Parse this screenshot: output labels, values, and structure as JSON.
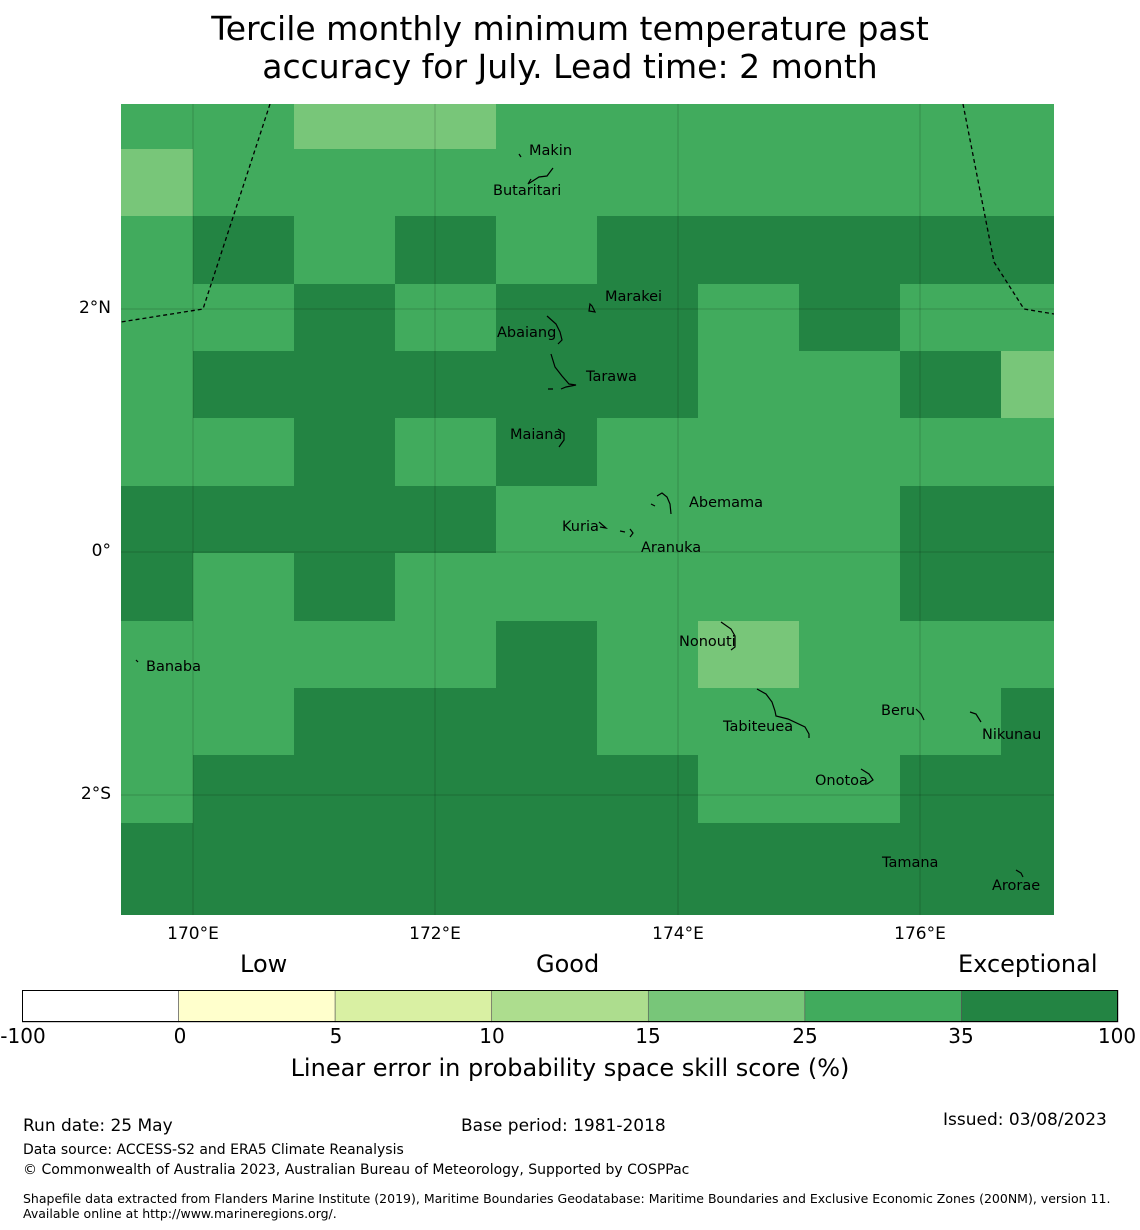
{
  "title": {
    "line1": "Tercile monthly minimum temperature past",
    "line2": "accuracy for July. Lead time: 2 month"
  },
  "map": {
    "lat_ticks": [
      "2°N",
      "0°",
      "2°S"
    ],
    "lon_ticks": [
      "170°E",
      "172°E",
      "174°E",
      "176°E"
    ],
    "grid_rows": [
      [
        2,
        2,
        1,
        1,
        2,
        2,
        2,
        2,
        2,
        2
      ],
      [
        1,
        2,
        2,
        2,
        2,
        2,
        2,
        2,
        2,
        2
      ],
      [
        2,
        3,
        2,
        3,
        2,
        3,
        3,
        3,
        3,
        3
      ],
      [
        2,
        2,
        3,
        2,
        3,
        3,
        2,
        3,
        2,
        2
      ],
      [
        2,
        3,
        3,
        3,
        3,
        3,
        2,
        2,
        3,
        1
      ],
      [
        2,
        2,
        3,
        2,
        3,
        2,
        2,
        2,
        2,
        2
      ],
      [
        3,
        3,
        3,
        3,
        2,
        2,
        2,
        2,
        3,
        3
      ],
      [
        3,
        2,
        3,
        2,
        2,
        2,
        2,
        2,
        3,
        3
      ],
      [
        2,
        2,
        2,
        2,
        3,
        2,
        1,
        2,
        2,
        2
      ],
      [
        2,
        2,
        3,
        3,
        3,
        2,
        2,
        2,
        2,
        3
      ],
      [
        2,
        3,
        3,
        3,
        3,
        3,
        2,
        2,
        3,
        3
      ],
      [
        3,
        3,
        3,
        3,
        3,
        3,
        3,
        3,
        3,
        3
      ]
    ],
    "islands": [
      {
        "name": "Makin"
      },
      {
        "name": "Butaritari"
      },
      {
        "name": "Marakei"
      },
      {
        "name": "Abaiang"
      },
      {
        "name": "Tarawa"
      },
      {
        "name": "Maiana"
      },
      {
        "name": "Abemama"
      },
      {
        "name": "Kuria"
      },
      {
        "name": "Aranuka"
      },
      {
        "name": "Banaba"
      },
      {
        "name": "Nonouti"
      },
      {
        "name": "Tabiteuea"
      },
      {
        "name": "Beru"
      },
      {
        "name": "Nikunau"
      },
      {
        "name": "Onotoa"
      },
      {
        "name": "Tamana"
      },
      {
        "name": "Arorae"
      }
    ]
  },
  "colorbar": {
    "categories": [
      "Low",
      "Good",
      "Exceptional"
    ],
    "ticks": [
      "-100",
      "0",
      "5",
      "10",
      "15",
      "25",
      "35",
      "100"
    ],
    "colors": [
      "#ffffff",
      "#ffffcc",
      "#d9f0a3",
      "#addd8e",
      "#78c679",
      "#41ab5d",
      "#238443"
    ],
    "label": "Linear error in probability space skill score (%)"
  },
  "footer": {
    "run_date": "Run date: 25 May",
    "base_period": "Base period: 1981-2018",
    "issued": "Issued: 03/08/2023",
    "data_source": "Data source: ACCESS-S2 and ERA5 Climate Reanalysis",
    "copyright": "© Commonwealth of Australia 2023, Australian Bureau of Meteorology, Supported by COSPPac",
    "shapefile": "Shapefile data extracted from Flanders Marine Institute (2019), Maritime Boundaries Geodatabase: Maritime Boundaries and Exclusive Economic Zones (200NM), version 11. Available online at http://www.marineregions.org/."
  }
}
